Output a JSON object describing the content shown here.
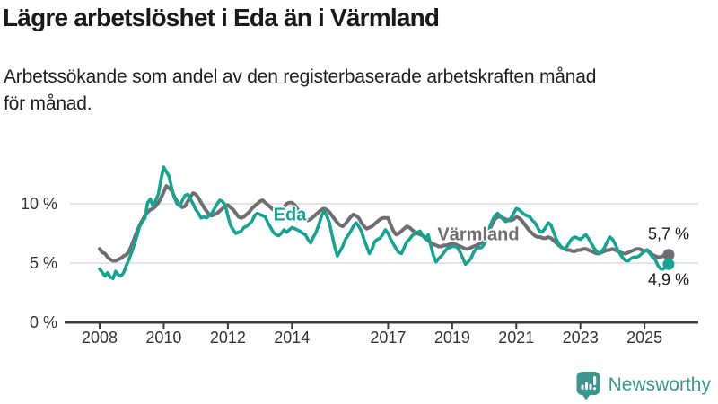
{
  "header": {
    "title": "Lägre arbetslöshet i Eda än i Värmland",
    "subtitle_lines": [
      "Arbetssökande som andel av den registerbaserade arbetskraften månad",
      "för månad."
    ]
  },
  "footer": {
    "brand": "Newsworthy"
  },
  "colors": {
    "eda": "#17a391",
    "varmland": "#6f6f73",
    "grid": "#dcdcdc",
    "axis": "#3c3c3c",
    "text": "#1a1a1a",
    "brand": "#3a968e"
  },
  "chart_data": {
    "type": "line",
    "title": "Lägre arbetslöshet i Eda än i Värmland",
    "subtitle": "Arbetssökande som andel av den registerbaserade arbetskraften månad för månad.",
    "xlabel": "",
    "ylabel": "",
    "x_start_year": 2008,
    "x_step_months": 1,
    "x_tick_labels": [
      "2008",
      "2010",
      "2012",
      "2014",
      "2017",
      "2019",
      "2021",
      "2023",
      "2025"
    ],
    "y_ticks": [
      {
        "value": 0,
        "label": "0 %"
      },
      {
        "value": 5,
        "label": "5 %"
      },
      {
        "value": 10,
        "label": "10 %"
      }
    ],
    "ylim": [
      0,
      13.5
    ],
    "grid": "horizontal-only",
    "legend": "inline-labels",
    "series": [
      {
        "name": "Värmland",
        "color": "#6f6f73",
        "width": 4,
        "end_label": "5,7 %",
        "end_value": 5.7,
        "values": [
          6.2,
          5.9,
          5.8,
          5.5,
          5.3,
          5.2,
          5.2,
          5.3,
          5.4,
          5.6,
          5.7,
          6.0,
          6.5,
          7.1,
          7.7,
          8.2,
          8.6,
          9.0,
          9.3,
          9.5,
          9.6,
          9.8,
          10.1,
          10.5,
          11.0,
          11.5,
          11.3,
          11.1,
          10.6,
          10.2,
          9.9,
          9.7,
          9.8,
          10.2,
          10.6,
          10.9,
          10.8,
          10.5,
          10.1,
          9.7,
          9.4,
          9.1,
          9.0,
          9.1,
          9.2,
          9.4,
          9.6,
          9.8,
          9.9,
          9.7,
          9.5,
          9.2,
          8.9,
          8.8,
          8.9,
          9.1,
          9.3,
          9.6,
          9.8,
          10.0,
          10.2,
          10.3,
          10.1,
          9.9,
          9.7,
          9.5,
          9.3,
          9.2,
          9.4,
          9.7,
          10.0,
          10.1,
          10.1,
          9.9,
          9.6,
          9.2,
          8.9,
          8.7,
          8.6,
          8.7,
          8.9,
          9.1,
          9.3,
          9.5,
          9.6,
          9.5,
          9.3,
          9.0,
          8.7,
          8.4,
          8.2,
          8.1,
          8.3,
          8.6,
          8.9,
          9.1,
          9.0,
          8.8,
          8.4,
          8.1,
          7.9,
          8.0,
          8.1,
          8.3,
          8.5,
          8.7,
          8.8,
          8.8,
          8.8,
          8.2,
          7.7,
          7.4,
          7.5,
          7.7,
          7.9,
          8.1,
          8.0,
          7.8,
          7.6,
          7.5,
          7.4,
          7.3,
          7.1,
          6.9,
          6.7,
          6.6,
          6.5,
          6.4,
          6.4,
          6.5,
          6.5,
          6.6,
          6.6,
          6.6,
          6.5,
          6.4,
          6.3,
          6.2,
          6.2,
          6.3,
          6.4,
          6.5,
          6.6,
          6.7,
          6.9,
          7.2,
          7.8,
          8.3,
          8.7,
          8.9,
          8.9,
          8.8,
          8.7,
          8.6,
          8.6,
          8.7,
          8.9,
          8.8,
          8.6,
          8.3,
          8.0,
          7.7,
          7.5,
          7.3,
          7.2,
          7.2,
          7.1,
          7.1,
          7.2,
          7.1,
          6.9,
          6.7,
          6.5,
          6.3,
          6.2,
          6.1,
          6.1,
          6.0,
          6.0,
          6.1,
          6.1,
          6.2,
          6.2,
          6.1,
          6.0,
          5.9,
          5.8,
          5.8,
          5.9,
          6.0,
          6.1,
          6.1,
          6.2,
          6.1,
          6.0,
          5.9,
          5.8,
          5.8,
          5.9,
          6.0,
          6.1,
          6.2,
          6.2,
          6.1,
          6.0,
          6.1,
          5.9,
          5.7,
          5.6,
          5.5,
          5.5,
          5.6,
          5.6,
          5.7
        ]
      },
      {
        "name": "Eda",
        "color": "#17a391",
        "width": 3.6,
        "end_label": "4,9 %",
        "end_value": 4.9,
        "values": [
          4.5,
          4.2,
          3.9,
          4.2,
          3.8,
          3.7,
          4.3,
          4.0,
          3.9,
          4.2,
          4.8,
          5.3,
          5.9,
          6.6,
          7.3,
          8.1,
          8.5,
          8.8,
          10.1,
          10.4,
          9.8,
          10.3,
          10.8,
          12.1,
          13.1,
          12.7,
          12.3,
          11.3,
          10.5,
          10.0,
          9.8,
          10.3,
          10.7,
          10.8,
          10.4,
          10.0,
          9.5,
          9.2,
          8.8,
          8.9,
          8.8,
          9.0,
          9.2,
          9.6,
          10.0,
          10.3,
          10.2,
          9.9,
          9.0,
          8.2,
          7.8,
          7.5,
          7.6,
          7.7,
          8.0,
          8.1,
          8.3,
          8.5,
          9.0,
          9.2,
          9.1,
          9.0,
          8.9,
          8.4,
          8.0,
          7.6,
          7.4,
          7.3,
          7.5,
          7.8,
          7.6,
          7.8,
          8.0,
          7.9,
          7.8,
          7.7,
          7.5,
          7.4,
          7.0,
          6.7,
          7.2,
          7.6,
          8.2,
          8.9,
          9.4,
          9.0,
          8.4,
          7.4,
          6.4,
          5.6,
          6.0,
          6.4,
          7.0,
          7.3,
          7.7,
          8.1,
          8.4,
          8.1,
          7.7,
          7.0,
          6.4,
          5.8,
          6.2,
          6.8,
          7.0,
          7.1,
          7.4,
          7.8,
          7.5,
          7.0,
          6.6,
          6.2,
          5.9,
          5.8,
          6.3,
          6.8,
          7.0,
          7.3,
          7.5,
          7.6,
          7.7,
          7.3,
          7.0,
          7.4,
          6.5,
          5.6,
          5.1,
          5.4,
          5.6,
          5.9,
          6.2,
          6.3,
          6.4,
          6.4,
          6.3,
          5.9,
          5.4,
          4.9,
          5.1,
          5.4,
          5.9,
          6.2,
          6.3,
          6.3,
          6.6,
          7.2,
          8.0,
          8.6,
          9.0,
          9.2,
          9.0,
          8.7,
          8.5,
          8.6,
          8.8,
          9.2,
          9.6,
          9.5,
          9.3,
          9.1,
          9.0,
          8.9,
          8.6,
          8.4,
          8.0,
          7.6,
          7.7,
          8.0,
          8.4,
          8.2,
          7.6,
          7.0,
          6.6,
          6.3,
          6.2,
          6.4,
          6.8,
          7.1,
          7.2,
          7.1,
          7.0,
          7.2,
          7.4,
          7.1,
          6.7,
          6.3,
          6.0,
          5.8,
          6.0,
          6.3,
          6.8,
          7.2,
          7.0,
          6.6,
          6.1,
          5.7,
          5.4,
          5.2,
          5.2,
          5.4,
          5.5,
          5.5,
          5.6,
          5.8,
          6.0,
          6.1,
          5.8,
          5.5,
          5.3,
          4.8,
          4.5,
          4.5,
          4.7,
          4.9
        ]
      }
    ]
  }
}
